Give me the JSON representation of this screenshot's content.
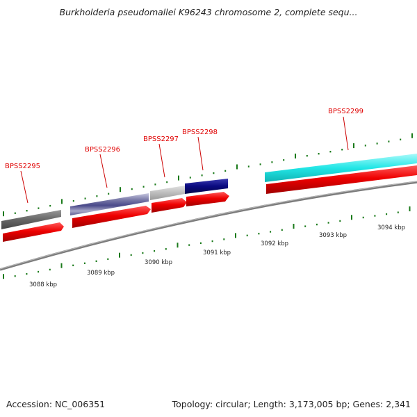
{
  "title": "Burkholderia pseudomallei K96243 chromosome 2, complete sequ...",
  "footer": {
    "accession": "Accession: NC_006351",
    "summary": "Topology: circular; Length: 3,173,005 bp; Genes: 2,341"
  },
  "genes": [
    {
      "label": "BPSS2295"
    },
    {
      "label": "BPSS2296"
    },
    {
      "label": "BPSS2297"
    },
    {
      "label": "BPSS2298"
    },
    {
      "label": "BPSS2299"
    }
  ],
  "scale": {
    "unit": "kbp",
    "ticks": [
      "3088 kbp",
      "3089 kbp",
      "3090 kbp",
      "3091 kbp",
      "3092 kbp",
      "3093 kbp",
      "3094 kbp"
    ]
  },
  "colors": {
    "gene_label": "#e00000",
    "cds_arrow": "#e80000",
    "backbone": "#808080",
    "tick": "#1a7a1a",
    "feature_gray_dark": "#666666",
    "feature_gray_light": "#bbbbbb",
    "feature_navy": "#0a0a80",
    "feature_cyan": "#22e6e6",
    "feature_purple": "#7a7aa8"
  }
}
